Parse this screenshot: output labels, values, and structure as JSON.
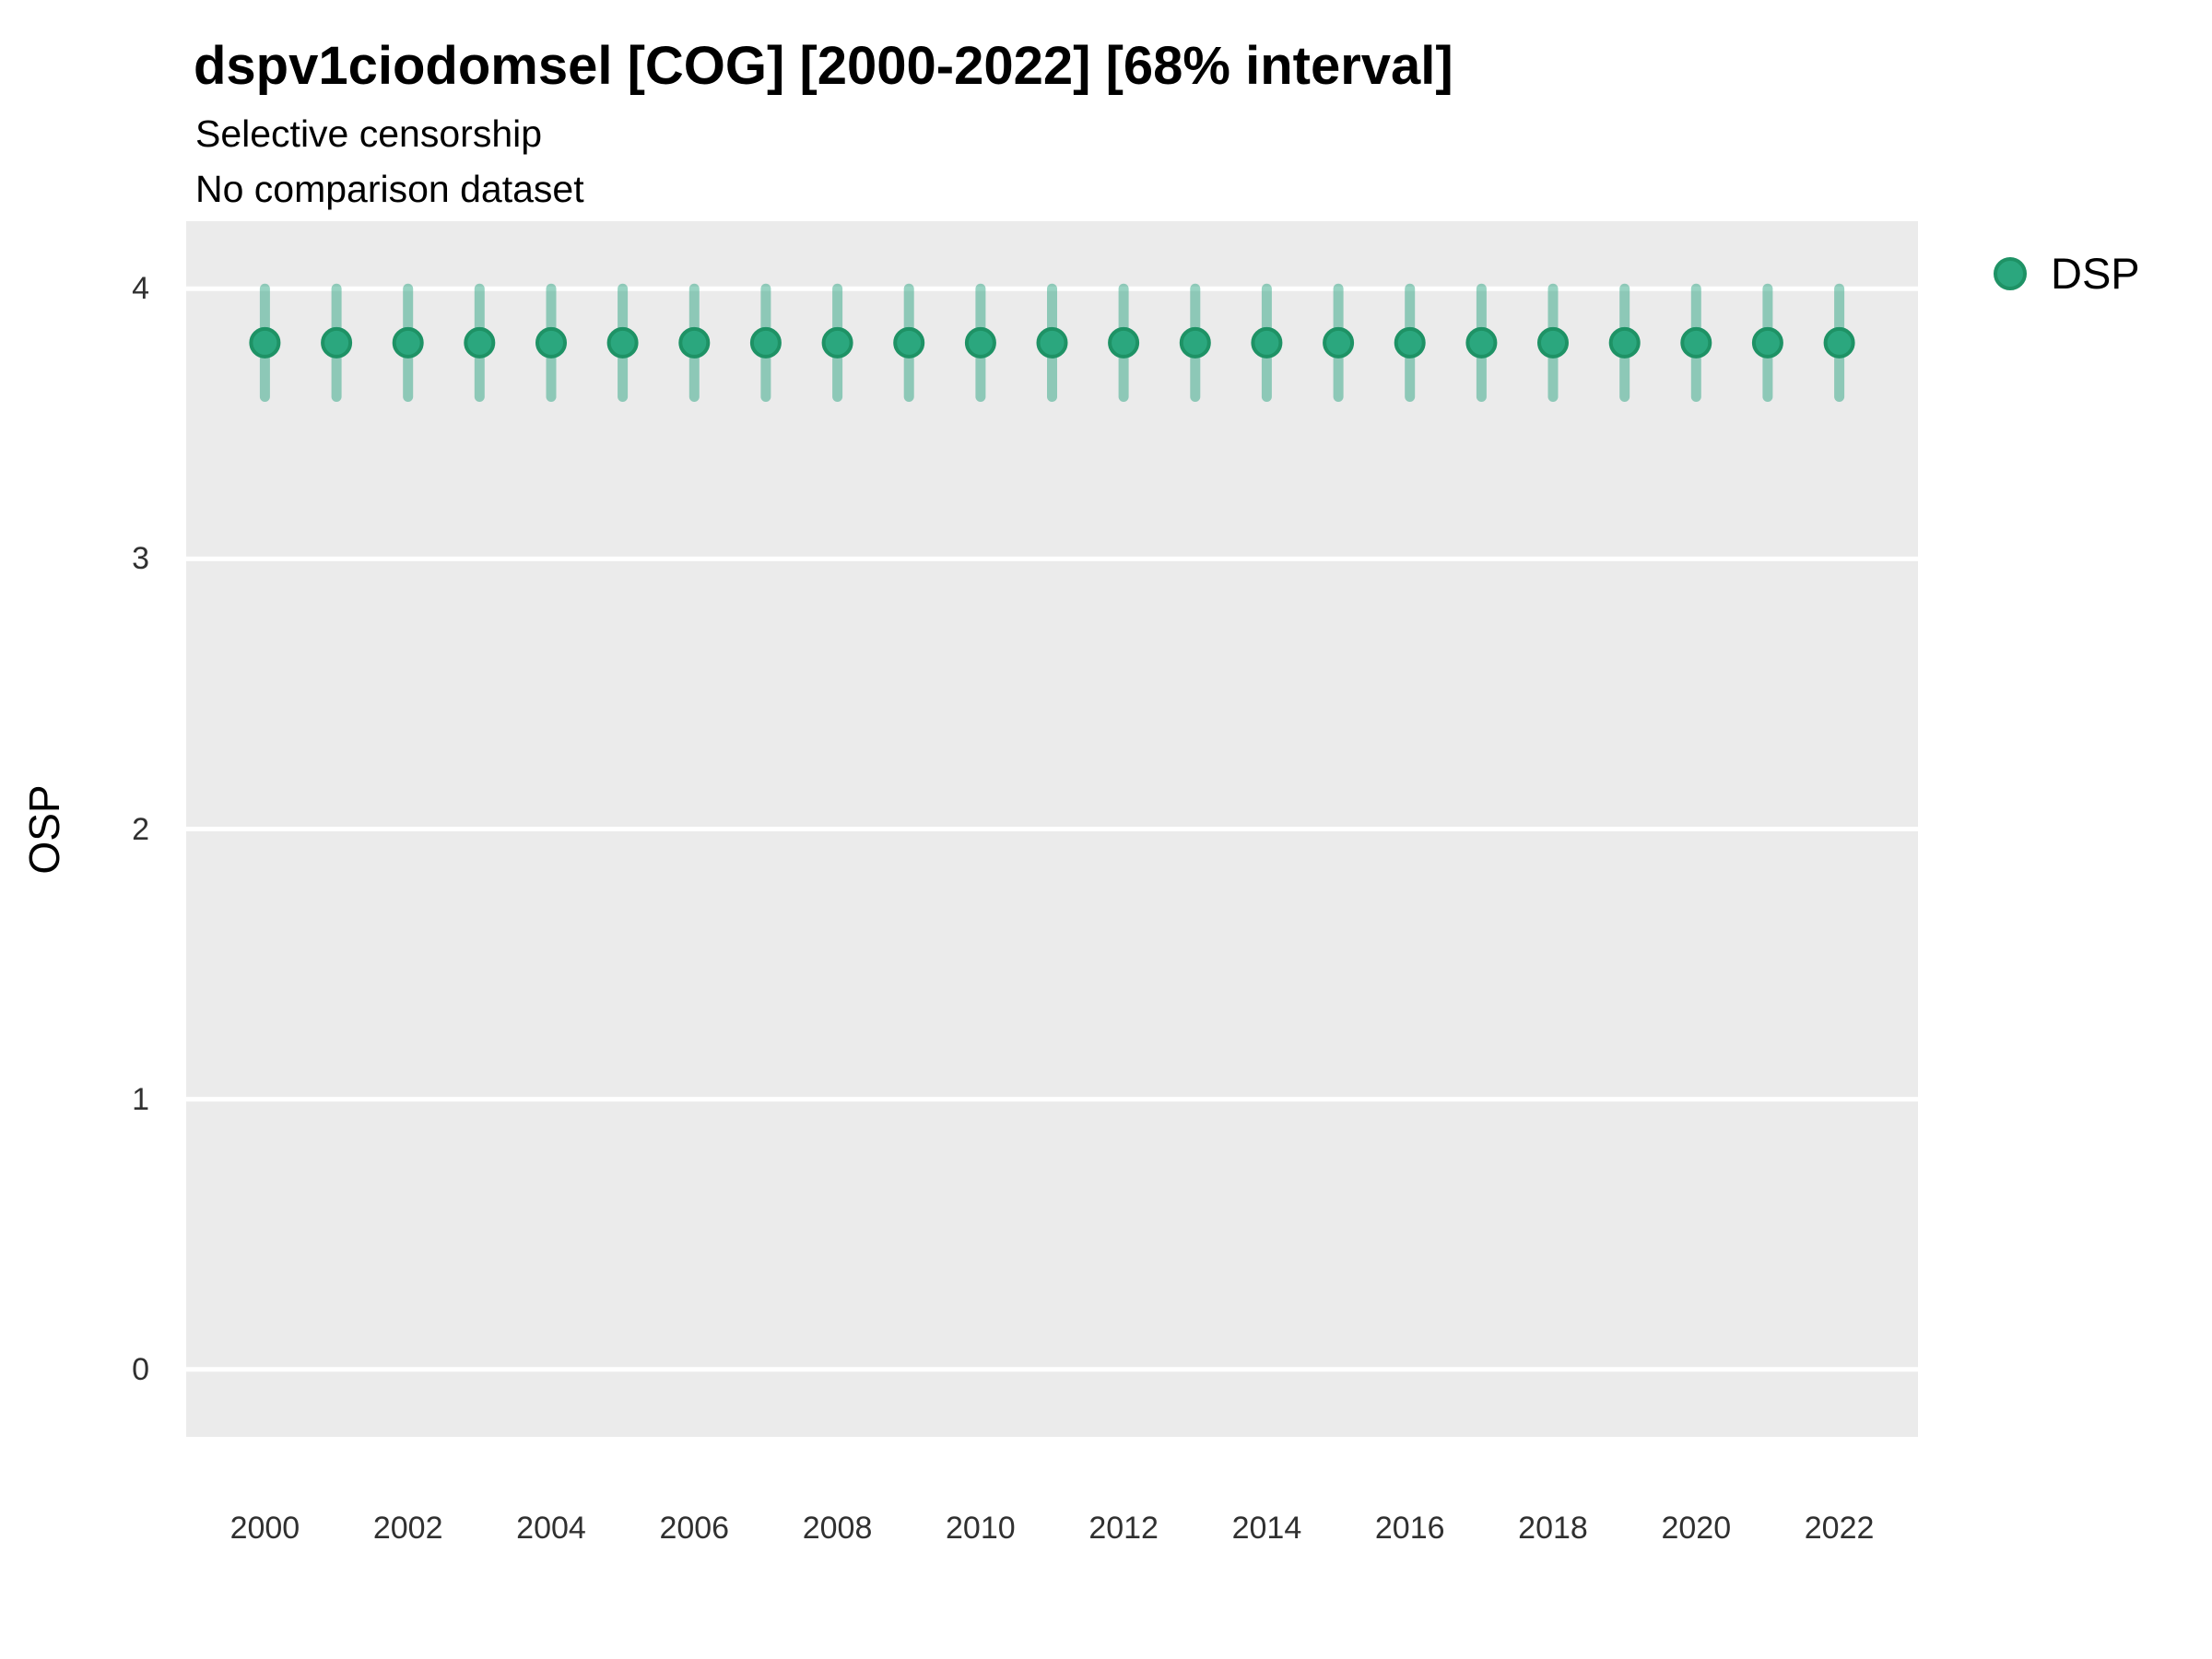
{
  "title": "dspv1ciodomsel [COG] [2000-2022] [68% interval]",
  "subtitle_line1": "Selective censorship",
  "subtitle_line2": "No comparison dataset",
  "y_axis": {
    "label": "OSP",
    "tick_labels": [
      "4",
      "3",
      "2",
      "1",
      "0"
    ]
  },
  "x_axis": {
    "tick_labels": [
      "2000",
      "2002",
      "2004",
      "2006",
      "2008",
      "2010",
      "2012",
      "2014",
      "2016",
      "2018",
      "2020",
      "2022"
    ]
  },
  "legend": {
    "items": [
      {
        "label": "DSP"
      }
    ]
  },
  "colors": {
    "panel_background": "#EBEBEB",
    "gridline": "#FFFFFF",
    "point_fill": "#2BA77E",
    "point_stroke": "#1E9265",
    "interval_bar": "rgba(27,158,119,0.45)",
    "tick_text": "#303030",
    "text": "#000000"
  },
  "chart_data": {
    "type": "scatter",
    "subtype": "point-interval",
    "title": "dspv1ciodomsel [COG] [2000-2022] [68% interval]",
    "subtitle": [
      "Selective censorship",
      "No comparison dataset"
    ],
    "xlabel": "",
    "ylabel": "OSP",
    "interval_level": "68%",
    "xlim": [
      1998.9,
      2023.1
    ],
    "ylim": [
      -0.25,
      4.25
    ],
    "y_ticks": [
      4,
      3,
      2,
      1,
      0
    ],
    "x_ticks": [
      2000,
      2002,
      2004,
      2006,
      2008,
      2010,
      2012,
      2014,
      2016,
      2018,
      2020,
      2022
    ],
    "grid": "major-horizontal-only",
    "legend_position": "top-right",
    "series": [
      {
        "name": "DSP",
        "x": [
          2000,
          2001,
          2002,
          2003,
          2004,
          2005,
          2006,
          2007,
          2008,
          2009,
          2010,
          2011,
          2012,
          2013,
          2014,
          2015,
          2016,
          2017,
          2018,
          2019,
          2020,
          2021,
          2022
        ],
        "y": [
          3.8,
          3.8,
          3.8,
          3.8,
          3.8,
          3.8,
          3.8,
          3.8,
          3.8,
          3.8,
          3.8,
          3.8,
          3.8,
          3.8,
          3.8,
          3.8,
          3.8,
          3.8,
          3.8,
          3.8,
          3.8,
          3.8,
          3.8
        ],
        "y_low": [
          3.6,
          3.6,
          3.6,
          3.6,
          3.6,
          3.6,
          3.6,
          3.6,
          3.6,
          3.6,
          3.6,
          3.6,
          3.6,
          3.6,
          3.6,
          3.6,
          3.6,
          3.6,
          3.6,
          3.6,
          3.6,
          3.6,
          3.6
        ],
        "y_high": [
          4.0,
          4.0,
          4.0,
          4.0,
          4.0,
          4.0,
          4.0,
          4.0,
          4.0,
          4.0,
          4.0,
          4.0,
          4.0,
          4.0,
          4.0,
          4.0,
          4.0,
          4.0,
          4.0,
          4.0,
          4.0,
          4.0,
          4.0
        ]
      }
    ]
  }
}
